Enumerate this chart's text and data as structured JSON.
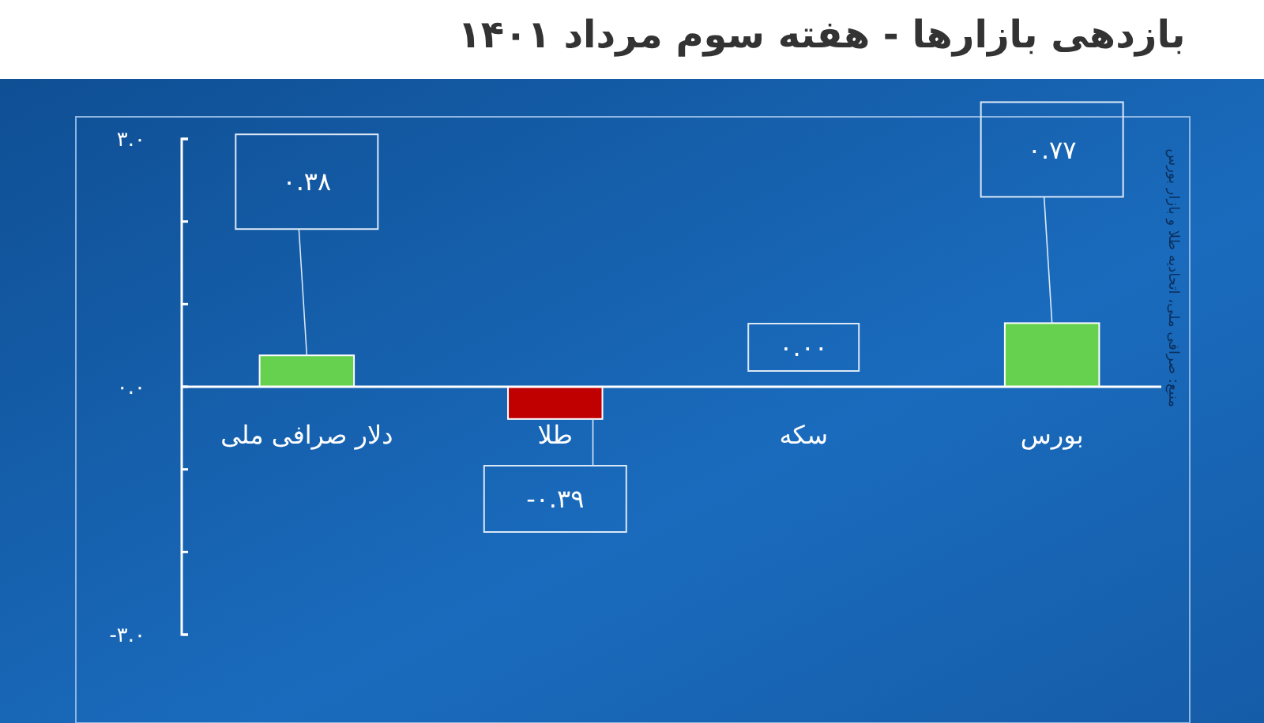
{
  "chart_data": {
    "type": "bar",
    "title": "بازدهی بازارها - هفته سوم مرداد ۱۴۰۱",
    "categories": [
      "دلار صرافی ملی",
      "طلا",
      "سکه",
      "بورس"
    ],
    "values": [
      0.38,
      -0.39,
      0,
      0.77
    ],
    "colors": [
      "#66d04f",
      "#c00000",
      "#66d04f",
      "#66d04f"
    ],
    "value_labels": [
      "۰.۳۸",
      "-۰.۳۹",
      "۰.۰۰",
      "۰.۷۷"
    ],
    "ylim": [
      -3,
      3
    ],
    "yticks": [
      {
        "value": -3,
        "label": "-۳.۰"
      },
      {
        "value": -2,
        "label": null
      },
      {
        "value": -1,
        "label": null
      },
      {
        "value": 0,
        "label": "۰.۰"
      },
      {
        "value": 1,
        "label": null
      },
      {
        "value": 2,
        "label": null
      },
      {
        "value": 3,
        "label": "۳.۰"
      }
    ],
    "annotations": [
      "منبع: صرافی ملی، اتحادیه طلا و بازار بورس"
    ]
  }
}
